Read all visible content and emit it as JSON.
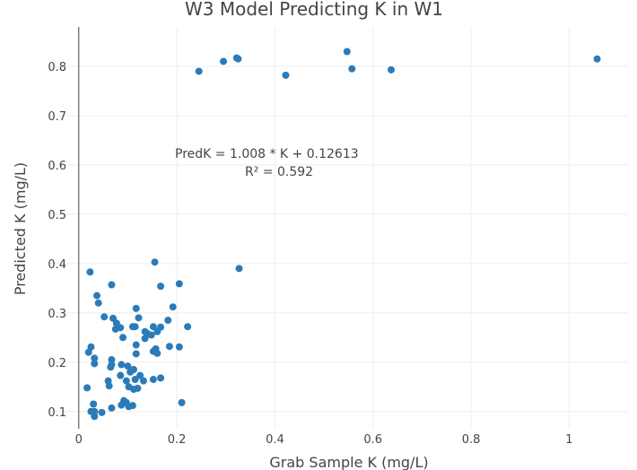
{
  "chart_data": {
    "type": "scatter",
    "title": "W3 Model Predicting K in W1",
    "xlabel": "Grab Sample K (mg/L)",
    "ylabel": "Predicted K (mg/L)",
    "xlim": [
      -0.06,
      1.12
    ],
    "ylim": [
      0.065,
      0.88
    ],
    "x_ticks": [
      0,
      0.2,
      0.4,
      0.6,
      0.8,
      1
    ],
    "x_tick_labels": [
      "0",
      "0.2",
      "0.4",
      "0.6",
      "0.8",
      "1"
    ],
    "y_ticks": [
      0.1,
      0.2,
      0.3,
      0.4,
      0.5,
      0.6,
      0.7,
      0.8
    ],
    "y_tick_labels": [
      "0.1",
      "0.2",
      "0.3",
      "0.4",
      "0.5",
      "0.6",
      "0.7",
      "0.8"
    ],
    "grid": true,
    "annotation": {
      "line1": "PredK  =  1.008 * K + 0.12613",
      "line2": "R² =  0.592"
    },
    "series": [
      {
        "color": "#2b7bb9",
        "points": [
          [
            0.245,
            0.79
          ],
          [
            0.295,
            0.81
          ],
          [
            0.322,
            0.817
          ],
          [
            0.325,
            0.815
          ],
          [
            0.422,
            0.782
          ],
          [
            0.547,
            0.83
          ],
          [
            0.557,
            0.795
          ],
          [
            0.637,
            0.793
          ],
          [
            1.057,
            0.815
          ],
          [
            0.327,
            0.39
          ],
          [
            0.023,
            0.383
          ],
          [
            0.155,
            0.403
          ],
          [
            0.205,
            0.359
          ],
          [
            0.067,
            0.357
          ],
          [
            0.167,
            0.354
          ],
          [
            0.037,
            0.335
          ],
          [
            0.04,
            0.32
          ],
          [
            0.117,
            0.309
          ],
          [
            0.192,
            0.312
          ],
          [
            0.052,
            0.292
          ],
          [
            0.07,
            0.289
          ],
          [
            0.122,
            0.29
          ],
          [
            0.182,
            0.285
          ],
          [
            0.077,
            0.279
          ],
          [
            0.11,
            0.272
          ],
          [
            0.115,
            0.272
          ],
          [
            0.135,
            0.262
          ],
          [
            0.152,
            0.272
          ],
          [
            0.167,
            0.271
          ],
          [
            0.222,
            0.272
          ],
          [
            0.075,
            0.267
          ],
          [
            0.085,
            0.27
          ],
          [
            0.14,
            0.258
          ],
          [
            0.16,
            0.262
          ],
          [
            0.09,
            0.25
          ],
          [
            0.135,
            0.248
          ],
          [
            0.148,
            0.255
          ],
          [
            0.117,
            0.235
          ],
          [
            0.025,
            0.231
          ],
          [
            0.157,
            0.227
          ],
          [
            0.185,
            0.232
          ],
          [
            0.205,
            0.231
          ],
          [
            0.02,
            0.22
          ],
          [
            0.117,
            0.217
          ],
          [
            0.152,
            0.222
          ],
          [
            0.16,
            0.218
          ],
          [
            0.032,
            0.208
          ],
          [
            0.067,
            0.205
          ],
          [
            0.032,
            0.197
          ],
          [
            0.067,
            0.195
          ],
          [
            0.087,
            0.195
          ],
          [
            0.1,
            0.192
          ],
          [
            0.065,
            0.19
          ],
          [
            0.112,
            0.185
          ],
          [
            0.105,
            0.18
          ],
          [
            0.085,
            0.173
          ],
          [
            0.125,
            0.173
          ],
          [
            0.152,
            0.165
          ],
          [
            0.167,
            0.168
          ],
          [
            0.06,
            0.162
          ],
          [
            0.097,
            0.162
          ],
          [
            0.115,
            0.165
          ],
          [
            0.132,
            0.162
          ],
          [
            0.062,
            0.152
          ],
          [
            0.102,
            0.15
          ],
          [
            0.112,
            0.145
          ],
          [
            0.017,
            0.148
          ],
          [
            0.12,
            0.147
          ],
          [
            0.092,
            0.122
          ],
          [
            0.097,
            0.118
          ],
          [
            0.087,
            0.113
          ],
          [
            0.102,
            0.11
          ],
          [
            0.11,
            0.112
          ],
          [
            0.03,
            0.115
          ],
          [
            0.21,
            0.118
          ],
          [
            0.067,
            0.107
          ],
          [
            0.025,
            0.1
          ],
          [
            0.032,
            0.1
          ],
          [
            0.047,
            0.098
          ],
          [
            0.032,
            0.09
          ]
        ]
      }
    ]
  }
}
